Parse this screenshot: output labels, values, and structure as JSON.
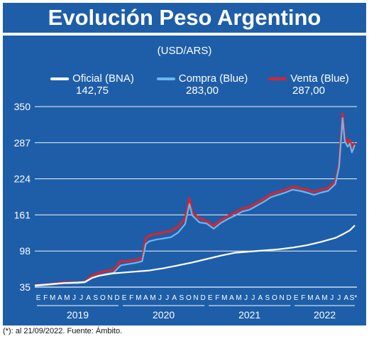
{
  "title": "Evolución Peso Argentino",
  "unit": "(USD/ARS)",
  "footnote": "(*): al 21/09/2022. Fuente: Ámbito.",
  "colors": {
    "background": "#1e5ea8",
    "oficial": "#ffffff",
    "compra": "#6ab7ee",
    "venta": "#d9232e"
  },
  "legend": [
    {
      "name": "Oficial (BNA)",
      "value": "142,75",
      "color": "#ffffff"
    },
    {
      "name": "Compra (Blue)",
      "value": "283,00",
      "color": "#6ab7ee"
    },
    {
      "name": "Venta (Blue)",
      "value": "287,00",
      "color": "#d9232e"
    }
  ],
  "chart_data": {
    "type": "line",
    "ylim": [
      35,
      350
    ],
    "yticks": [
      35,
      98,
      161,
      224,
      287,
      350
    ],
    "grid": true,
    "legend_position": "top",
    "x_range": [
      0,
      45
    ],
    "months": [
      "E",
      "F",
      "M",
      "A",
      "M",
      "J",
      "J",
      "A",
      "S",
      "O",
      "N",
      "D",
      "E",
      "F",
      "M",
      "A",
      "M",
      "J",
      "J",
      "A",
      "S",
      "O",
      "N",
      "D",
      "E",
      "F",
      "M",
      "A",
      "M",
      "J",
      "J",
      "A",
      "S",
      "O",
      "N",
      "D",
      "E",
      "F",
      "M",
      "A",
      "M",
      "J",
      "J",
      "A",
      "S*"
    ],
    "years": [
      "2019",
      "2020",
      "2021",
      "2022"
    ],
    "series": [
      {
        "name": "Oficial (BNA)",
        "x": [
          0,
          2,
          4,
          6,
          7,
          8,
          9,
          10,
          11,
          12,
          14,
          16,
          18,
          20,
          22,
          24,
          26,
          28,
          30,
          32,
          34,
          36,
          38,
          40,
          42,
          43,
          44,
          44.7
        ],
        "y": [
          38,
          40,
          42,
          43,
          44,
          51,
          55,
          57,
          59,
          60,
          62,
          64,
          68,
          73,
          78,
          84,
          90,
          95,
          97,
          99,
          101,
          104,
          108,
          114,
          121,
          127,
          134,
          142.75
        ]
      },
      {
        "name": "Compra (Blue)",
        "x": [
          0,
          2,
          4,
          6,
          7,
          8,
          9,
          10,
          11,
          12,
          13,
          14,
          15,
          15.5,
          16,
          17,
          18,
          19,
          20,
          21,
          21.6,
          22,
          23,
          24,
          25,
          26,
          27,
          28,
          29,
          30,
          31,
          32,
          33,
          34,
          35,
          36,
          37,
          38,
          39,
          40,
          41,
          42,
          42.5,
          43,
          43.3,
          43.7,
          44,
          44.3,
          44.7
        ],
        "y": [
          37,
          39,
          42,
          42,
          43,
          51,
          55,
          58,
          60,
          73,
          75,
          77,
          80,
          110,
          115,
          118,
          120,
          122,
          130,
          145,
          180,
          160,
          148,
          146,
          137,
          147,
          154,
          160,
          167,
          170,
          177,
          184,
          192,
          196,
          200,
          205,
          203,
          200,
          196,
          200,
          203,
          215,
          245,
          330,
          290,
          280,
          285,
          270,
          283
        ]
      },
      {
        "name": "Venta (Blue)",
        "x": [
          0,
          2,
          4,
          6,
          7,
          8,
          9,
          10,
          11,
          12,
          13,
          14,
          15,
          15.5,
          16,
          17,
          18,
          19,
          20,
          21,
          21.6,
          22,
          23,
          24,
          25,
          26,
          27,
          28,
          29,
          30,
          31,
          32,
          33,
          34,
          35,
          36,
          37,
          38,
          39,
          40,
          41,
          42,
          42.5,
          43,
          43.3,
          43.7,
          44,
          44.3,
          44.7
        ],
        "y": [
          38,
          40,
          43,
          43,
          44,
          55,
          60,
          63,
          65,
          80,
          80,
          82,
          85,
          120,
          125,
          128,
          130,
          133,
          140,
          155,
          190,
          165,
          155,
          150,
          142,
          152,
          159,
          165,
          172,
          175,
          182,
          189,
          197,
          201,
          205,
          210,
          208,
          205,
          201,
          205,
          208,
          220,
          250,
          338,
          297,
          287,
          292,
          277,
          287
        ]
      }
    ]
  }
}
